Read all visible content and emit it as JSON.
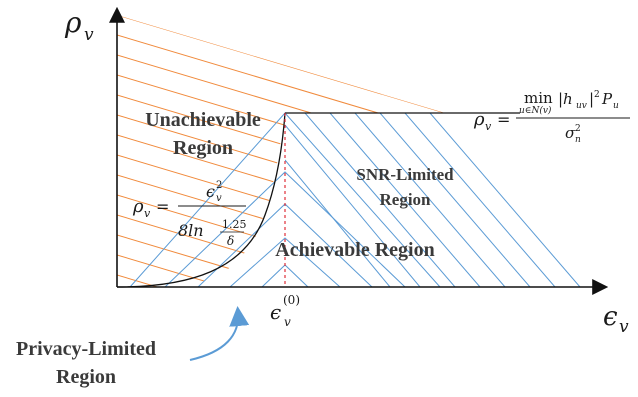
{
  "axes": {
    "y_label": "ρ",
    "y_label_sub": "v",
    "x_label": "ϵ",
    "x_label_sub": "v"
  },
  "regions": {
    "unachievable_line1": "Unachievable",
    "unachievable_line2": "Region",
    "snr_line1": "SNR-Limited",
    "snr_line2": "Region",
    "achievable": "Achievable Region",
    "privacy_line1": "Privacy-Limited",
    "privacy_line2": "Region"
  },
  "equations": {
    "snr": {
      "lhs": "ρ",
      "lhs_sub": "v",
      "eq": "=",
      "min": "min",
      "min_sub": "u∈N(v)",
      "numerator": "|h",
      "numerator_sub": "uv",
      "numerator_sup": "2",
      "numerator_tail": "|",
      "P": "P",
      "P_sub": "u",
      "den": "σ",
      "den_sup": "2",
      "den_sub": "n"
    },
    "privacy": {
      "lhs": "ρ",
      "lhs_sub": "v",
      "eq": "=",
      "num": "ϵ",
      "num_sup": "2",
      "num_sub": "v",
      "den_prefix": "8ln",
      "den_frac_num": "1.25",
      "den_frac_den": "δ"
    },
    "epsilon0": {
      "sym": "ϵ",
      "sub": "v",
      "sup": "(0)"
    }
  },
  "colors": {
    "axis": "#111111",
    "orange_hatch": "#f08a3c",
    "blue_hatch": "#5b9bd5",
    "curve": "#111111",
    "dashed_line": "#e0303a",
    "arrow": "#5b9bd5"
  }
}
